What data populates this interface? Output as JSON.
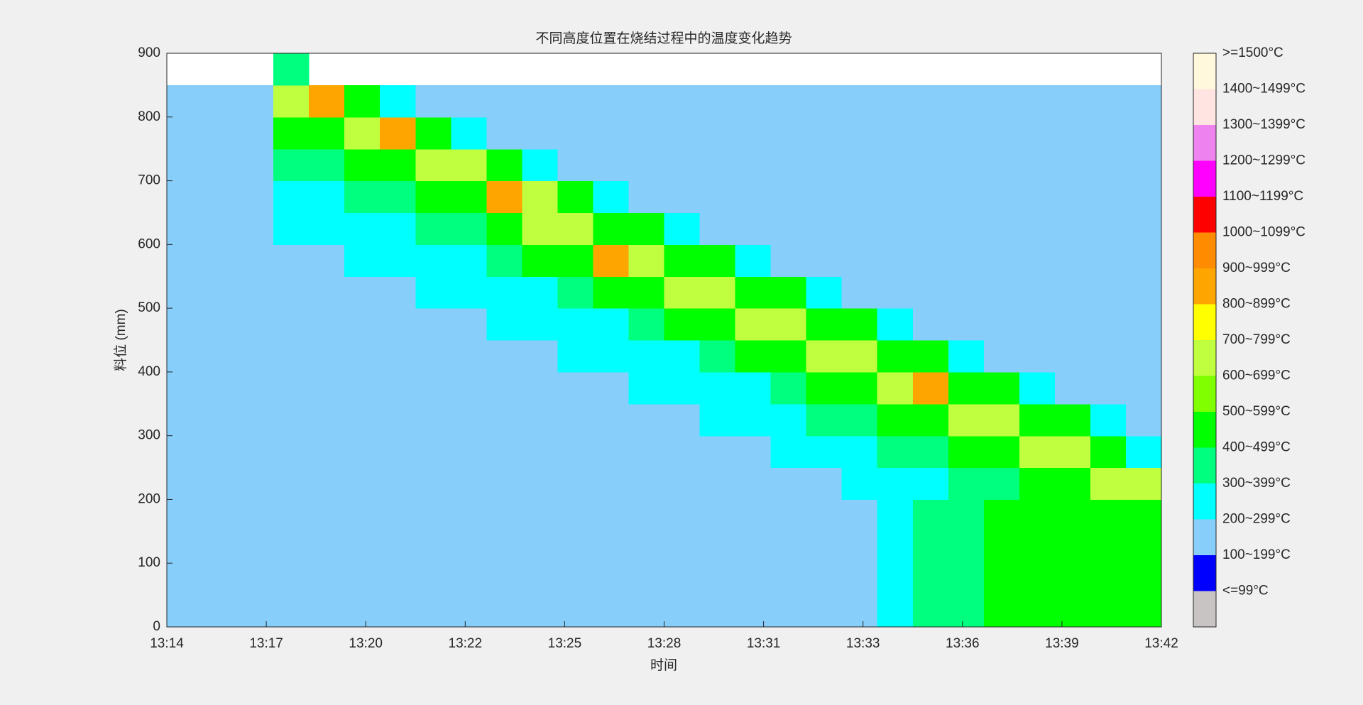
{
  "chart_data": {
    "type": "heatmap",
    "title": "不同高度位置在烧结过程中的温度变化趋势",
    "xlabel": "时间",
    "ylabel": "料位 (mm)",
    "xlim": [
      0,
      28
    ],
    "ylim": [
      0,
      900
    ],
    "xticks": [
      {
        "value": 0,
        "label": "13:14"
      },
      {
        "value": 2.8,
        "label": "13:17"
      },
      {
        "value": 5.6,
        "label": "13:20"
      },
      {
        "value": 8.4,
        "label": "13:22"
      },
      {
        "value": 11.2,
        "label": "13:25"
      },
      {
        "value": 14,
        "label": "13:28"
      },
      {
        "value": 16.8,
        "label": "13:31"
      },
      {
        "value": 19.6,
        "label": "13:33"
      },
      {
        "value": 22.4,
        "label": "13:36"
      },
      {
        "value": 25.2,
        "label": "13:39"
      },
      {
        "value": 28,
        "label": "13:42"
      }
    ],
    "yticks": [
      0,
      100,
      200,
      300,
      400,
      500,
      600,
      700,
      800,
      900
    ],
    "x": [
      0.5,
      1.5,
      2.5,
      3.5,
      4.5,
      5.5,
      6.5,
      7.5,
      8.5,
      9.5,
      10.5,
      11.5,
      12.5,
      13.5,
      14.5,
      15.5,
      16.5,
      17.5,
      18.5,
      19.5,
      20.5,
      21.5,
      22.5,
      23.5,
      24.5,
      25.5,
      26.5,
      27.5
    ],
    "y": [
      25,
      75,
      125,
      175,
      225,
      275,
      325,
      375,
      425,
      475,
      525,
      575,
      625,
      675,
      725,
      775,
      825,
      875
    ],
    "z": [
      [
        250,
        250,
        250,
        250,
        250,
        250,
        250,
        250,
        250,
        250,
        250,
        250,
        250,
        250,
        250,
        250,
        250,
        250,
        250,
        250,
        330,
        420,
        420,
        520,
        520,
        520,
        520,
        520
      ],
      [
        250,
        250,
        250,
        250,
        250,
        250,
        250,
        250,
        250,
        250,
        250,
        250,
        250,
        250,
        250,
        250,
        250,
        250,
        250,
        250,
        330,
        420,
        420,
        520,
        520,
        520,
        520,
        520
      ],
      [
        250,
        250,
        250,
        250,
        250,
        250,
        250,
        250,
        250,
        250,
        250,
        250,
        250,
        250,
        250,
        250,
        250,
        250,
        250,
        250,
        330,
        420,
        420,
        520,
        520,
        520,
        520,
        520
      ],
      [
        250,
        250,
        250,
        250,
        250,
        250,
        250,
        250,
        250,
        250,
        250,
        250,
        250,
        250,
        250,
        250,
        250,
        250,
        250,
        250,
        330,
        420,
        420,
        520,
        520,
        520,
        520,
        520
      ],
      [
        250,
        250,
        250,
        250,
        250,
        250,
        250,
        250,
        250,
        250,
        250,
        250,
        250,
        250,
        250,
        250,
        250,
        250,
        250,
        330,
        330,
        330,
        420,
        420,
        550,
        550,
        720,
        720
      ],
      [
        250,
        250,
        250,
        250,
        250,
        250,
        250,
        250,
        250,
        250,
        250,
        250,
        250,
        250,
        250,
        250,
        250,
        330,
        330,
        330,
        420,
        420,
        550,
        550,
        720,
        720,
        550,
        330
      ],
      [
        250,
        250,
        250,
        250,
        250,
        250,
        250,
        250,
        250,
        250,
        250,
        250,
        250,
        250,
        250,
        330,
        330,
        330,
        420,
        420,
        550,
        550,
        720,
        720,
        550,
        550,
        330,
        250
      ],
      [
        250,
        250,
        250,
        250,
        250,
        250,
        250,
        250,
        250,
        250,
        250,
        250,
        250,
        330,
        330,
        330,
        330,
        420,
        550,
        550,
        720,
        950,
        550,
        550,
        330,
        250,
        250,
        250
      ],
      [
        250,
        250,
        250,
        250,
        250,
        250,
        250,
        250,
        250,
        250,
        250,
        330,
        330,
        330,
        330,
        420,
        550,
        550,
        720,
        720,
        550,
        550,
        330,
        250,
        250,
        250,
        250,
        250
      ],
      [
        250,
        250,
        250,
        250,
        250,
        250,
        250,
        250,
        250,
        330,
        330,
        330,
        330,
        420,
        550,
        550,
        720,
        720,
        550,
        550,
        330,
        250,
        250,
        250,
        250,
        250,
        250,
        250
      ],
      [
        250,
        250,
        250,
        250,
        250,
        250,
        250,
        330,
        330,
        330,
        330,
        420,
        550,
        550,
        720,
        720,
        550,
        550,
        330,
        250,
        250,
        250,
        250,
        250,
        250,
        250,
        250,
        250
      ],
      [
        250,
        250,
        250,
        250,
        250,
        330,
        330,
        330,
        330,
        420,
        550,
        550,
        950,
        720,
        550,
        550,
        330,
        250,
        250,
        250,
        250,
        250,
        250,
        250,
        250,
        250,
        250,
        250
      ],
      [
        250,
        250,
        250,
        330,
        330,
        330,
        330,
        420,
        420,
        550,
        720,
        720,
        550,
        550,
        330,
        250,
        250,
        250,
        250,
        250,
        250,
        250,
        250,
        250,
        250,
        250,
        250,
        250
      ],
      [
        250,
        250,
        250,
        330,
        330,
        420,
        420,
        550,
        550,
        950,
        720,
        550,
        330,
        250,
        250,
        250,
        250,
        250,
        250,
        250,
        250,
        250,
        250,
        250,
        250,
        250,
        250,
        250
      ],
      [
        250,
        250,
        250,
        420,
        420,
        550,
        550,
        720,
        720,
        550,
        330,
        250,
        250,
        250,
        250,
        250,
        250,
        250,
        250,
        250,
        250,
        250,
        250,
        250,
        250,
        250,
        250,
        250
      ],
      [
        250,
        250,
        250,
        550,
        550,
        720,
        950,
        550,
        330,
        250,
        250,
        250,
        250,
        250,
        250,
        250,
        250,
        250,
        250,
        250,
        250,
        250,
        250,
        250,
        250,
        250,
        250,
        250
      ],
      [
        250,
        250,
        250,
        720,
        950,
        550,
        330,
        250,
        250,
        250,
        250,
        250,
        250,
        250,
        250,
        250,
        250,
        250,
        250,
        250,
        250,
        250,
        250,
        250,
        250,
        250,
        250,
        250
      ],
      [
        null,
        null,
        null,
        420,
        null,
        null,
        null,
        null,
        null,
        null,
        null,
        null,
        null,
        null,
        null,
        null,
        null,
        null,
        null,
        null,
        null,
        null,
        null,
        null,
        null,
        null,
        null,
        null
      ]
    ],
    "colorbar": {
      "bounds": [
        0,
        100,
        200,
        300,
        400,
        500,
        600,
        700,
        800,
        900,
        1000,
        1100,
        1200,
        1300,
        1400,
        1500,
        1600
      ],
      "colors": [
        "#c8c4c4",
        "#0000ff",
        "#87cefa",
        "#00ffff",
        "#00ff7f",
        "#00ff00",
        "#7fff00",
        "#bfff3f",
        "#ffff00",
        "#ffa500",
        "#ff8c00",
        "#ff0000",
        "#ff00ff",
        "#ee82ee",
        "#ffe4e1",
        "#fff8dc"
      ],
      "labels": [
        "<=99°C",
        "100~199°C",
        "200~299°C",
        "300~399°C",
        "400~499°C",
        "500~599°C",
        "600~699°C",
        "700~799°C",
        "800~899°C",
        "900~999°C",
        "1000~1099°C",
        "1100~1199°C",
        "1200~1299°C",
        "1300~1399°C",
        "1400~1499°C",
        ">=1500°C"
      ]
    }
  }
}
